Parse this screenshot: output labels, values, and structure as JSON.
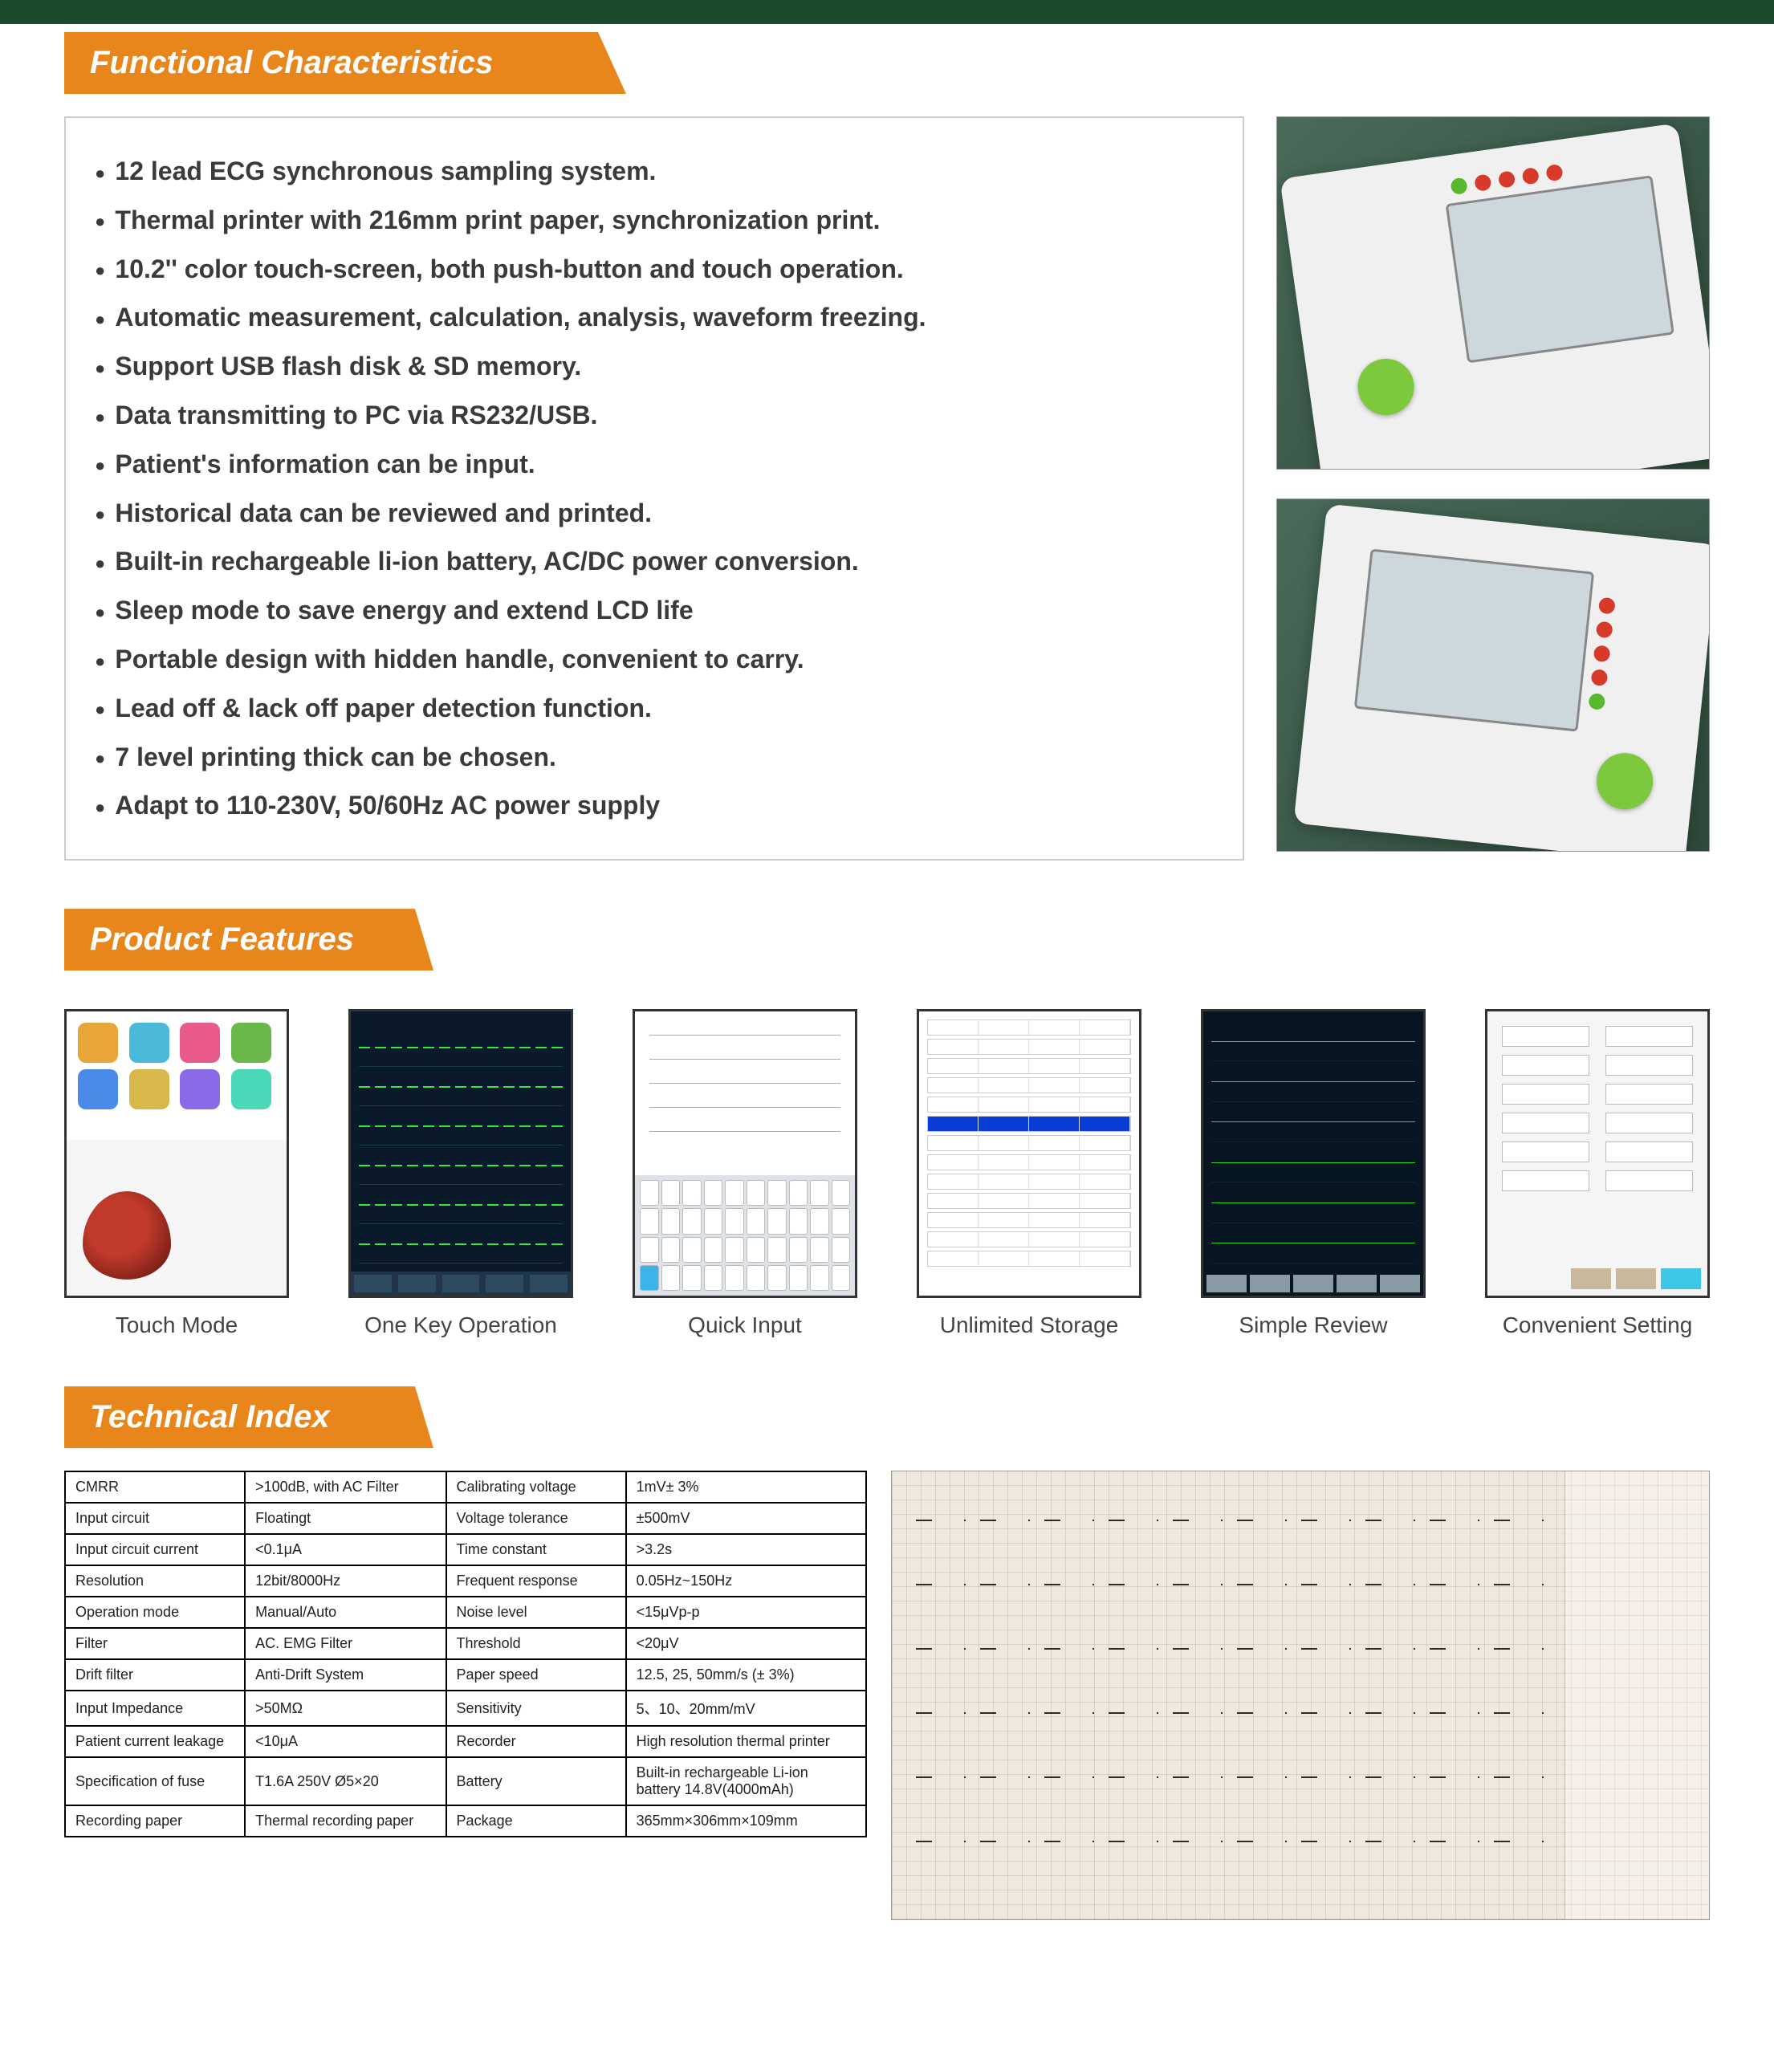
{
  "colors": {
    "header_bg": "#e8861c",
    "header_text": "#ffffff",
    "page_border": "#1a4a2a",
    "body_text": "#3a3a3a",
    "box_border": "#cccccc",
    "photo_bg_dark": "#2d4a3a",
    "device_body": "#f0f0f0",
    "device_screen": "#cdd8dc",
    "btn_red": "#d83a2a",
    "btn_green": "#7cc93e",
    "ecg_trace": "#3ae83a",
    "ecg_bg": "#0a1a2a",
    "highlight_blue": "#0a3cd8",
    "cyan": "#3dc8e8",
    "print_paper": "#efe8de"
  },
  "typography": {
    "header_fontsize_pt": 30,
    "bullet_fontsize_pt": 24,
    "caption_fontsize_pt": 21,
    "table_fontsize_pt": 14,
    "header_style": "bold italic"
  },
  "sections": {
    "functional": {
      "title": "Functional Characteristics"
    },
    "features": {
      "title": "Product Features"
    },
    "technical": {
      "title": "Technical Index"
    }
  },
  "functional_items": [
    "12 lead ECG synchronous sampling system.",
    "Thermal printer with 216mm print paper, synchronization print.",
    "10.2'' color touch-screen, both push-button and touch operation.",
    "Automatic measurement, calculation, analysis, waveform freezing.",
    "Support USB flash disk & SD memory.",
    "Data transmitting to PC via RS232/USB.",
    "Patient's information can be input.",
    "Historical data can be reviewed and printed.",
    "Built-in rechargeable li-ion battery, AC/DC power conversion.",
    "Sleep mode to save energy and extend LCD life",
    "Portable design with hidden handle, convenient to carry.",
    "Lead off & lack off paper detection function.",
    " 7 level printing thick can be chosen.",
    "Adapt to 110-230V, 50/60Hz AC power supply"
  ],
  "feature_thumbs": [
    {
      "caption": "Touch Mode",
      "kind": "touch",
      "icon_colors": [
        "#e8a53a",
        "#4ab8d8",
        "#e85a8a",
        "#6ab84a",
        "#4a8ae8",
        "#d8b84a",
        "#8a6ae8",
        "#4ad8b8"
      ]
    },
    {
      "caption": "One Key Operation",
      "kind": "ecg"
    },
    {
      "caption": "Quick Input",
      "kind": "input"
    },
    {
      "caption": "Unlimited Storage",
      "kind": "storage",
      "rows": 13,
      "selected_row": 5
    },
    {
      "caption": "Simple Review",
      "kind": "review"
    },
    {
      "caption": "Convenient Setting",
      "kind": "setting",
      "fields": 12
    }
  ],
  "technical_table": {
    "columns": [
      "param1",
      "value1",
      "param2",
      "value2"
    ],
    "rows": [
      [
        "CMRR",
        ">100dB, with AC Filter",
        "Calibrating voltage",
        "1mV± 3%"
      ],
      [
        "Input circuit",
        "Floatingt",
        "Voltage tolerance",
        "±500mV"
      ],
      [
        "Input circuit current",
        "<0.1μA",
        "Time constant",
        ">3.2s"
      ],
      [
        "Resolution",
        "12bit/8000Hz",
        "Frequent response",
        "0.05Hz~150Hz"
      ],
      [
        "Operation mode",
        "Manual/Auto",
        "Noise level",
        "<15μVp-p"
      ],
      [
        "Filter",
        "AC. EMG Filter",
        "Threshold",
        "<20μV"
      ],
      [
        "Drift filter",
        "Anti-Drift System",
        "Paper speed",
        "12.5, 25, 50mm/s (± 3%)"
      ],
      [
        "Input Impedance",
        ">50MΩ",
        "Sensitivity",
        "5、10、20mm/mV"
      ],
      [
        "Patient current leakage",
        "<10μA",
        "Recorder",
        "High resolution thermal printer"
      ],
      [
        "Specification of fuse",
        "T1.6A 250V Ø5×20",
        "Battery",
        "Built-in rechargeable Li-ion battery 14.8V(4000mAh)"
      ],
      [
        "Recording paper",
        "Thermal recording paper",
        "Package",
        "365mm×306mm×109mm"
      ]
    ]
  },
  "ecg_printout": {
    "trace_rows": 6
  }
}
